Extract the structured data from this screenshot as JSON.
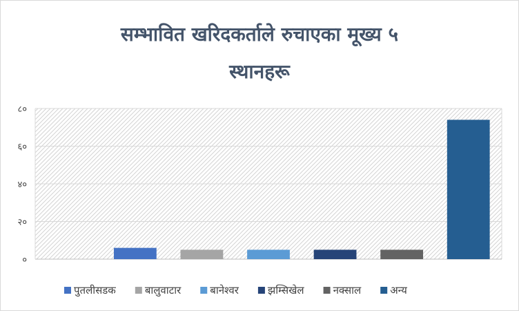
{
  "chart_data": {
    "type": "bar",
    "title": "सम्भावित खरिदकर्ताले रुचाएका मूख्य ५ स्थानहरू",
    "title_lines": [
      "सम्भावित खरिदकर्ताले रुचाएका मूख्य ५",
      "स्थानहरू"
    ],
    "xlabel": "",
    "ylabel": "",
    "ylim": [
      0,
      80
    ],
    "y_ticks": [
      0,
      20,
      40,
      60,
      80
    ],
    "y_tick_labels": [
      "०",
      "२०",
      "४०",
      "६०",
      "८०"
    ],
    "grid": true,
    "legend_position": "bottom",
    "background": "hatched",
    "series": [
      {
        "name": "पुतलीसडक",
        "category_index": 1,
        "value": 6,
        "color": "#4472c4"
      },
      {
        "name": "बालुवाटार",
        "category_index": 2,
        "value": 5,
        "color": "#a5a5a5"
      },
      {
        "name": "बानेश्वर",
        "category_index": 3,
        "value": 5,
        "color": "#5b9bd5"
      },
      {
        "name": "झम्सिखेल",
        "category_index": 4,
        "value": 5,
        "color": "#264478"
      },
      {
        "name": "नक्साल",
        "category_index": 5,
        "value": 5,
        "color": "#636363"
      },
      {
        "name": "अन्य",
        "category_index": 6,
        "value": 74,
        "color": "#255e91"
      }
    ],
    "category_count": 7
  }
}
